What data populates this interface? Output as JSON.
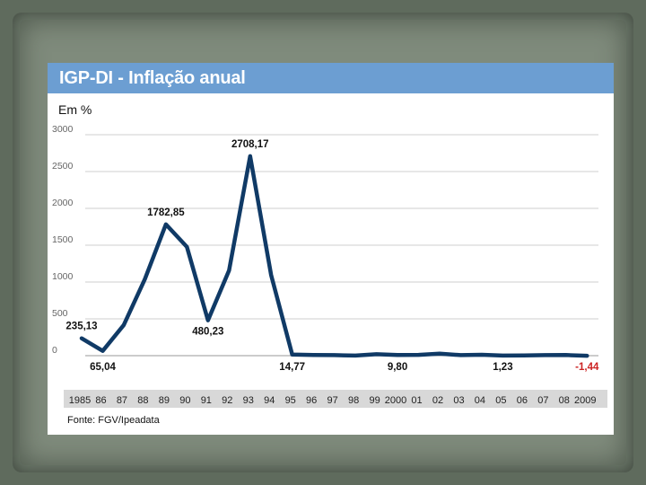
{
  "chart_data": {
    "type": "line",
    "title": "IGP-DI - Inflação anual",
    "ylabel": "Em %",
    "source": "Fonte: FGV/Ipeadata",
    "ylim": [
      0,
      3000
    ],
    "yticks": [
      "3000",
      "2500",
      "2000",
      "1500",
      "1000",
      "500",
      "0"
    ],
    "ytick_values": [
      3000,
      2500,
      2000,
      1500,
      1000,
      500,
      0
    ],
    "categories": [
      "1985",
      "86",
      "87",
      "88",
      "89",
      "90",
      "91",
      "92",
      "93",
      "94",
      "95",
      "96",
      "97",
      "98",
      "99",
      "2000",
      "01",
      "02",
      "03",
      "04",
      "05",
      "06",
      "07",
      "08",
      "2009"
    ],
    "series": [
      {
        "name": "IGP-DI",
        "color": "#103a66",
        "values": [
          235.13,
          65.04,
          415.8,
          1037.6,
          1782.85,
          1476.7,
          480.23,
          1157.8,
          2708.17,
          1093.8,
          14.77,
          9.3,
          7.5,
          1.7,
          20.0,
          9.8,
          10.4,
          26.4,
          7.7,
          12.1,
          1.23,
          3.8,
          7.9,
          9.1,
          -1.44
        ]
      }
    ],
    "annotations": [
      {
        "index": 0,
        "text": "235,13",
        "pos": "above"
      },
      {
        "index": 1,
        "text": "65,04",
        "pos": "below"
      },
      {
        "index": 4,
        "text": "1782,85",
        "pos": "above"
      },
      {
        "index": 6,
        "text": "480,23",
        "pos": "below"
      },
      {
        "index": 8,
        "text": "2708,17",
        "pos": "above"
      },
      {
        "index": 10,
        "text": "14,77",
        "pos": "below"
      },
      {
        "index": 15,
        "text": "9,80",
        "pos": "below"
      },
      {
        "index": 20,
        "text": "1,23",
        "pos": "below"
      },
      {
        "index": 24,
        "text": "-1,44",
        "pos": "below",
        "color": "#cc2222"
      }
    ],
    "grid": true
  }
}
